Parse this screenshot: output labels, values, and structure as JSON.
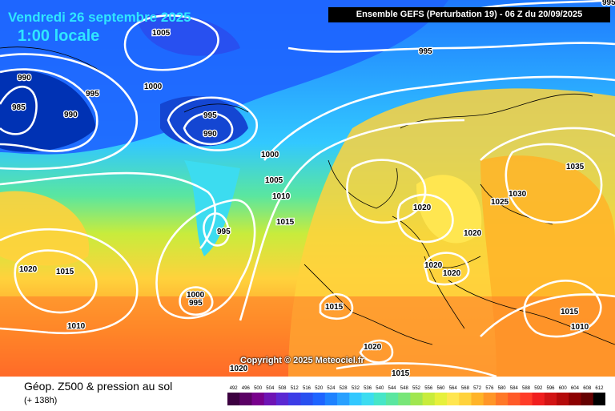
{
  "header": {
    "date": "Vendredi 26 septembre 2025",
    "time": "1:00 locale",
    "run_info": "Ensemble GEFS  (Perturbation 19)  -  06 Z du 20/09/2025"
  },
  "copyright": "Copyright © 2025 Meteociel.fr",
  "footer": {
    "product": "Géop. Z500 & pression au sol",
    "lead": "(+ 138h)"
  },
  "isobar_labels": [
    {
      "text": "1005"
    },
    {
      "text": "995"
    },
    {
      "text": "990"
    },
    {
      "text": "995"
    },
    {
      "text": "985"
    },
    {
      "text": "990"
    },
    {
      "text": "1000"
    },
    {
      "text": "995"
    },
    {
      "text": "990"
    },
    {
      "text": "995"
    },
    {
      "text": "1000"
    },
    {
      "text": "1005"
    },
    {
      "text": "1010"
    },
    {
      "text": "995"
    },
    {
      "text": "1015"
    },
    {
      "text": "1020"
    },
    {
      "text": "1015"
    },
    {
      "text": "1010"
    },
    {
      "text": "1000"
    },
    {
      "text": "995"
    },
    {
      "text": "1015"
    },
    {
      "text": "1020"
    },
    {
      "text": "1020"
    },
    {
      "text": "1020"
    },
    {
      "text": "1020"
    },
    {
      "text": "1025"
    },
    {
      "text": "1030"
    },
    {
      "text": "1035"
    },
    {
      "text": "1015"
    },
    {
      "text": "1010"
    },
    {
      "text": "1020"
    },
    {
      "text": "1020"
    },
    {
      "text": "1015"
    },
    {
      "text": "995"
    }
  ],
  "scale": {
    "labels": [
      "492",
      "496",
      "500",
      "504",
      "508",
      "512",
      "516",
      "520",
      "524",
      "528",
      "532",
      "536",
      "540",
      "544",
      "548",
      "552",
      "556",
      "560",
      "564",
      "568",
      "572",
      "576",
      "580",
      "584",
      "588",
      "592",
      "596",
      "600",
      "604",
      "608",
      "612"
    ],
    "colors": [
      "#3c0040",
      "#5a0064",
      "#78008c",
      "#6e14b4",
      "#5a28d2",
      "#3c3ce6",
      "#2850f0",
      "#1e64ff",
      "#1e82ff",
      "#28a0ff",
      "#32c8ff",
      "#3cdcf0",
      "#46e6c8",
      "#5ae6a0",
      "#78e678",
      "#a0e650",
      "#c8ec3c",
      "#e6f03c",
      "#ffe650",
      "#ffd23c",
      "#ffb428",
      "#ff9628",
      "#ff7828",
      "#ff5a28",
      "#ff3c28",
      "#f01e1e",
      "#d21414",
      "#b40a0a",
      "#8c0000",
      "#640000",
      "#000000"
    ]
  }
}
